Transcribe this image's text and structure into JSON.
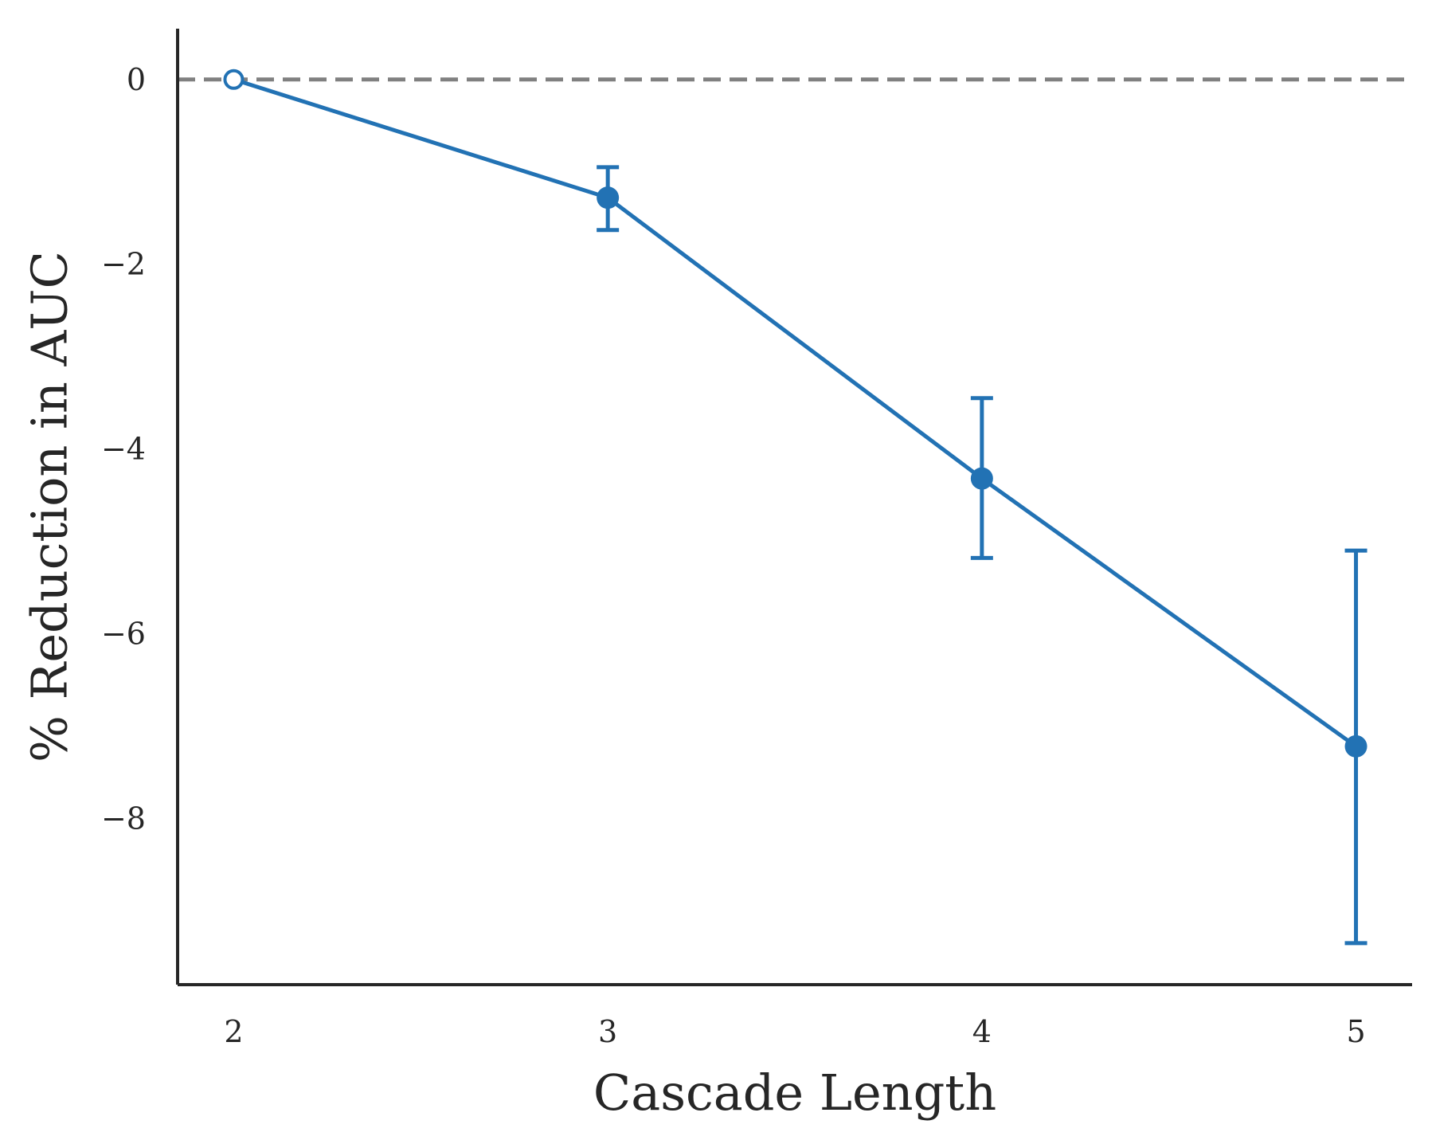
{
  "chart_data": {
    "type": "line",
    "title": "",
    "xlabel": "Cascade Length",
    "ylabel": "% Reduction in AUC",
    "x": [
      2,
      3,
      4,
      5
    ],
    "x_ticks": [
      "2",
      "3",
      "4",
      "5"
    ],
    "y_ticks": [
      0,
      -2,
      -4,
      -6,
      -8
    ],
    "y_tick_labels": [
      "0",
      "−2",
      "−4",
      "−6",
      "−8"
    ],
    "xlim": [
      1.85,
      5.15
    ],
    "ylim": [
      -9.8,
      0.55
    ],
    "series": [
      {
        "values": [
          0.0,
          -1.28,
          -4.32,
          -7.22
        ],
        "error_lower": [
          null,
          -1.63,
          -5.18,
          -9.35
        ],
        "error_upper": [
          null,
          -0.95,
          -3.45,
          -5.1
        ],
        "marker_hollow": [
          true,
          false,
          false,
          false
        ]
      }
    ],
    "reference_line": {
      "y": 0,
      "style": "dashed"
    },
    "grid": false,
    "colors": {
      "series": "#2272b4",
      "reference": "#808080",
      "axis": "#262626"
    }
  }
}
